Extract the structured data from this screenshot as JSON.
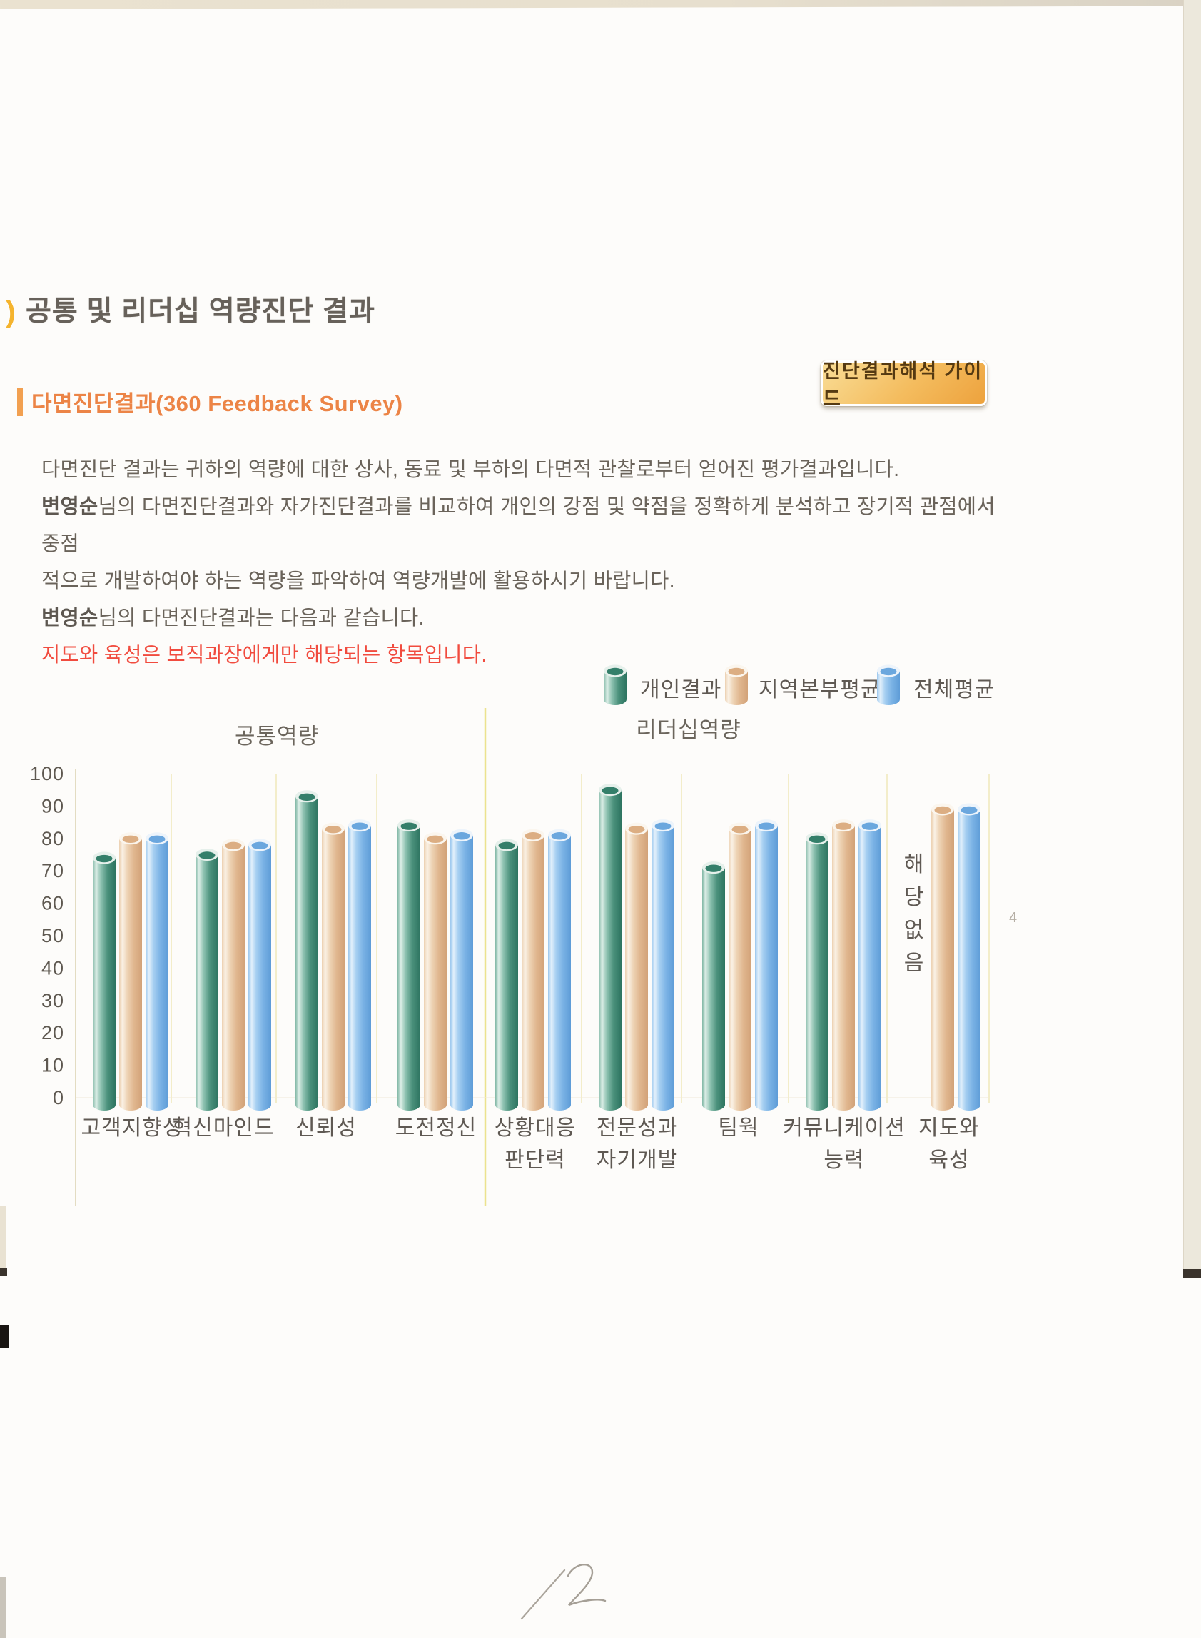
{
  "page": {
    "title_bullet": ")",
    "title": "공통 및 리더십 역량진단 결과",
    "subtitle": "다면진단결과(360 Feedback Survey)",
    "guide_button": "진단결과해석 가이드",
    "handwritten_page_mark": "12"
  },
  "intro": {
    "line1": "다면진단 결과는 귀하의 역량에 대한 상사, 동료 및 부하의 다면적 관찰로부터 얻어진 평가결과입니다.",
    "line2_name": "변영순",
    "line2_rest": "님의 다면진단결과와 자가진단결과를 비교하여 개인의 강점 및 약점을 정확하게 분석하고 장기적 관점에서 중점",
    "line3": "적으로 개발하여야 하는 역량을 파악하여 역량개발에 활용하시기 바랍니다.",
    "line4_name": "변영순",
    "line4_rest": "님의 다면진단결과는 다음과 같습니다.",
    "note_red": "지도와 육성은 보직과장에게만 해당되는 항목입니다."
  },
  "legend": [
    {
      "label": "개인결과",
      "color": "#4a907b"
    },
    {
      "label": "지역본부평균",
      "color": "#e0b68e"
    },
    {
      "label": "전체평균",
      "color": "#7ab2e5"
    }
  ],
  "chart_data": {
    "type": "bar",
    "title": "",
    "xlabel": "",
    "ylabel": "",
    "ylim": [
      0,
      100
    ],
    "yticks": [
      0,
      10,
      20,
      30,
      40,
      50,
      60,
      70,
      80,
      90,
      100
    ],
    "grid": true,
    "legend_position": "top-right",
    "sections": [
      {
        "label": "공통역량",
        "category_indexes": [
          0,
          1,
          2,
          3
        ]
      },
      {
        "label": "리더십역량",
        "category_indexes": [
          4,
          5,
          6,
          7,
          8
        ]
      }
    ],
    "categories": [
      {
        "lines": [
          "고객지향성"
        ]
      },
      {
        "lines": [
          "혁신마인드"
        ]
      },
      {
        "lines": [
          "신뢰성"
        ]
      },
      {
        "lines": [
          "도전정신"
        ]
      },
      {
        "lines": [
          "상황대응",
          "판단력"
        ]
      },
      {
        "lines": [
          "전문성과",
          "자기개발"
        ]
      },
      {
        "lines": [
          "팀웍"
        ]
      },
      {
        "lines": [
          "커뮤니케이션",
          "능력"
        ]
      },
      {
        "lines": [
          "지도와",
          "육성"
        ]
      }
    ],
    "series": [
      {
        "name": "개인결과",
        "color_key": "green",
        "values": [
          74,
          75,
          93,
          84,
          78,
          95,
          71,
          80,
          null
        ]
      },
      {
        "name": "지역본부평균",
        "color_key": "tan",
        "values": [
          80,
          78,
          83,
          80,
          81,
          83,
          83,
          84,
          89
        ]
      },
      {
        "name": "전체평균",
        "color_key": "blue",
        "values": [
          80,
          78,
          84,
          81,
          81,
          84,
          84,
          84,
          89
        ]
      }
    ],
    "not_applicable": {
      "category_index": 8,
      "series_index": 0,
      "label": "해당없음"
    },
    "stray_pencil_mark": "4"
  }
}
